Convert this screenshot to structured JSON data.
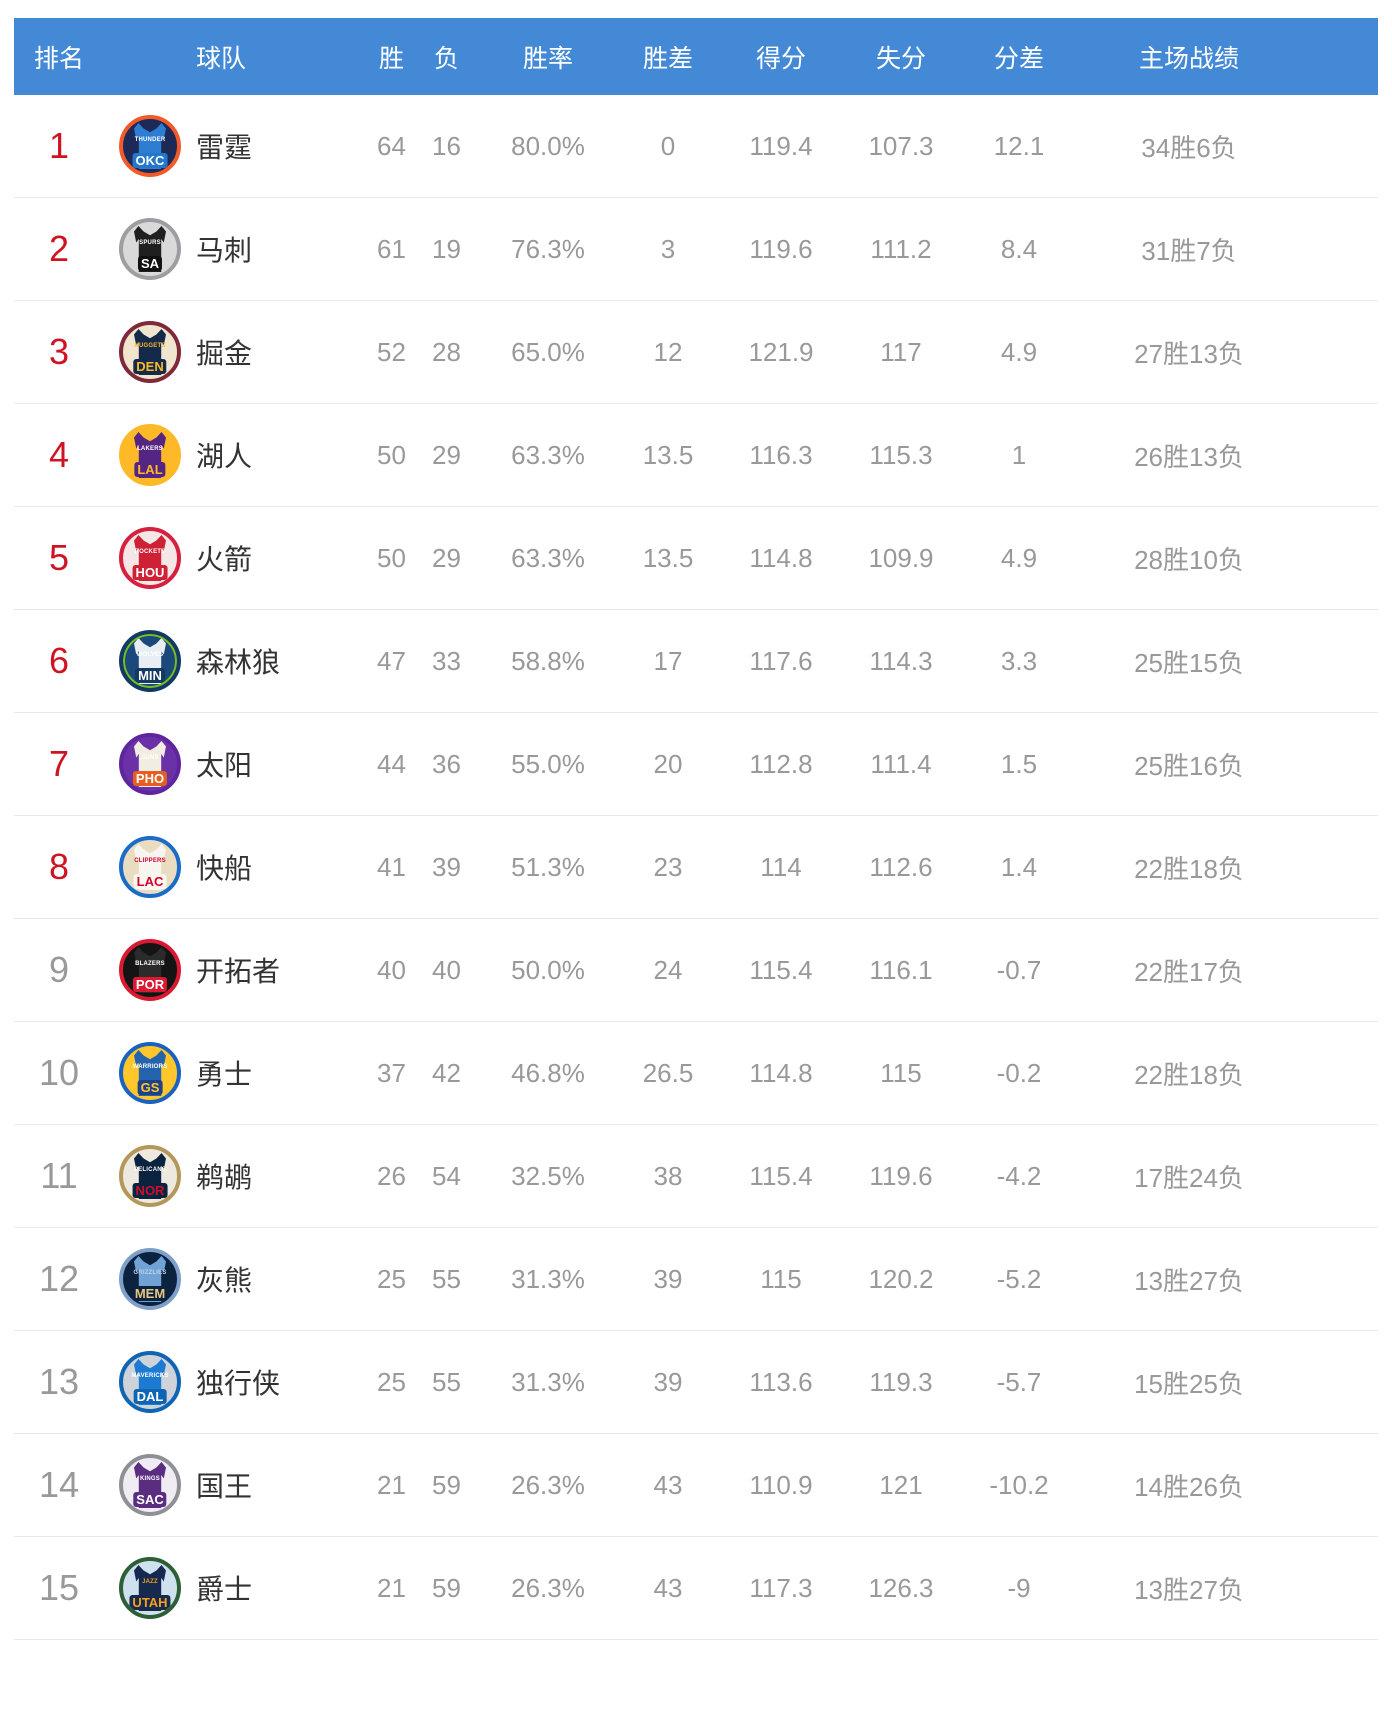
{
  "theme": {
    "header_bg": "#4489d6",
    "rank_top8_color": "#cf1322",
    "rank_normal_color": "#999999"
  },
  "table": {
    "columns": [
      "排名",
      "球队",
      "胜",
      "负",
      "胜率",
      "胜差",
      "得分",
      "失分",
      "分差",
      "主场战绩"
    ],
    "teams": [
      {
        "rank": "1",
        "rank_color": "#cf1322",
        "name": "雷霆",
        "wins": "64",
        "losses": "16",
        "win_rate": "80.0%",
        "games_behind": "0",
        "points_for": "119.4",
        "points_against": "107.3",
        "point_diff": "12.1",
        "home_record": "34胜6负",
        "logo": {
          "name": "THUNDER",
          "abbr": "OKC",
          "ring": "#f15a29",
          "bg": "#1d2a57",
          "jersey": "#2d7dd2",
          "name_color": "#ffffff",
          "abbr_color": "#ffffff",
          "abbr_bg": "#2478cc"
        }
      },
      {
        "rank": "2",
        "rank_color": "#cf1322",
        "name": "马刺",
        "wins": "61",
        "losses": "19",
        "win_rate": "76.3%",
        "games_behind": "3",
        "points_for": "119.6",
        "points_against": "111.2",
        "point_diff": "8.4",
        "home_record": "31胜7负",
        "logo": {
          "name": "SPURS",
          "abbr": "SA",
          "ring": "#9c9ea1",
          "bg": "#d9d9d9",
          "jersey": "#1f1f1f",
          "name_color": "#ffffff",
          "abbr_color": "#ffffff",
          "abbr_bg": "#111111"
        }
      },
      {
        "rank": "3",
        "rank_color": "#cf1322",
        "name": "掘金",
        "wins": "52",
        "losses": "28",
        "win_rate": "65.0%",
        "games_behind": "12",
        "points_for": "121.9",
        "points_against": "117",
        "point_diff": "4.9",
        "home_record": "27胜13负",
        "logo": {
          "name": "NUGGETS",
          "abbr": "DEN",
          "ring": "#7e2a3a",
          "bg": "#f0e6cf",
          "jersey": "#15294b",
          "name_color": "#fdb927",
          "abbr_color": "#fdb927",
          "abbr_bg": "#15294b"
        }
      },
      {
        "rank": "4",
        "rank_color": "#cf1322",
        "name": "湖人",
        "wins": "50",
        "losses": "29",
        "win_rate": "63.3%",
        "games_behind": "13.5",
        "points_for": "116.3",
        "points_against": "115.3",
        "point_diff": "1",
        "home_record": "26胜13负",
        "logo": {
          "name": "LAKERS",
          "abbr": "LAL",
          "ring": "#fdb927",
          "bg": "#fdb927",
          "jersey": "#552583",
          "name_color": "#ffffff",
          "abbr_color": "#fdb927",
          "abbr_bg": "#552583"
        }
      },
      {
        "rank": "5",
        "rank_color": "#cf1322",
        "name": "火箭",
        "wins": "50",
        "losses": "29",
        "win_rate": "63.3%",
        "games_behind": "13.5",
        "points_for": "114.8",
        "points_against": "109.9",
        "point_diff": "4.9",
        "home_record": "28胜10负",
        "logo": {
          "name": "ROCKETS",
          "abbr": "HOU",
          "ring": "#d6203f",
          "bg": "#f6e7e7",
          "jersey": "#ce2135",
          "name_color": "#ffffff",
          "abbr_color": "#ffffff",
          "abbr_bg": "#ce2135"
        }
      },
      {
        "rank": "6",
        "rank_color": "#cf1322",
        "name": "森林狼",
        "wins": "47",
        "losses": "33",
        "win_rate": "58.8%",
        "games_behind": "17",
        "points_for": "117.6",
        "points_against": "114.3",
        "point_diff": "3.3",
        "home_record": "25胜15负",
        "logo": {
          "name": "WOLVES",
          "abbr": "MIN",
          "ring": "#123a63",
          "ring2": "#78be20",
          "bg": "#1b4a7a",
          "jersey": "#e9eef5",
          "name_color": "#ffffff",
          "abbr_color": "#ffffff",
          "abbr_bg": "#123a63"
        }
      },
      {
        "rank": "7",
        "rank_color": "#cf1322",
        "name": "太阳",
        "wins": "44",
        "losses": "36",
        "win_rate": "55.0%",
        "games_behind": "20",
        "points_for": "112.8",
        "points_against": "111.4",
        "point_diff": "1.5",
        "home_record": "25胜16负",
        "logo": {
          "name": "SUNS",
          "abbr": "PHO",
          "ring": "#5f259f",
          "bg": "#6b32a8",
          "jersey": "#f2ede2",
          "name_color": "#ffffff",
          "abbr_color": "#ffffff",
          "abbr_bg": "#e56020"
        }
      },
      {
        "rank": "8",
        "rank_color": "#cf1322",
        "name": "快船",
        "wins": "41",
        "losses": "39",
        "win_rate": "51.3%",
        "games_behind": "23",
        "points_for": "114",
        "points_against": "112.6",
        "point_diff": "1.4",
        "home_record": "22胜18负",
        "logo": {
          "name": "CLIPPERS",
          "abbr": "LAC",
          "ring": "#1a6cc8",
          "bg": "#e9dcc0",
          "jersey": "#f7f5ef",
          "name_color": "#d50032",
          "abbr_color": "#d50032",
          "abbr_bg": "#faf7ee"
        }
      },
      {
        "rank": "9",
        "rank_color": "#999999",
        "name": "开拓者",
        "wins": "40",
        "losses": "40",
        "win_rate": "50.0%",
        "games_behind": "24",
        "points_for": "115.4",
        "points_against": "116.1",
        "point_diff": "-0.7",
        "home_record": "22胜17负",
        "logo": {
          "name": "BLAZERS",
          "abbr": "POR",
          "ring": "#d91a32",
          "bg": "#141414",
          "jersey": "#2b2b2b",
          "name_color": "#ffffff",
          "abbr_color": "#ffffff",
          "abbr_bg": "#d91a32"
        }
      },
      {
        "rank": "10",
        "rank_color": "#999999",
        "name": "勇士",
        "wins": "37",
        "losses": "42",
        "win_rate": "46.8%",
        "games_behind": "26.5",
        "points_for": "114.8",
        "points_against": "115",
        "point_diff": "-0.2",
        "home_record": "22胜18负",
        "logo": {
          "name": "WARRIORS",
          "abbr": "GS",
          "ring": "#1b62c0",
          "bg": "#ffc72c",
          "jersey": "#2563ad",
          "name_color": "#ffffff",
          "abbr_color": "#ffc72c",
          "abbr_bg": "#1d428a"
        }
      },
      {
        "rank": "11",
        "rank_color": "#999999",
        "name": "鹈鹕",
        "wins": "26",
        "losses": "54",
        "win_rate": "32.5%",
        "games_behind": "38",
        "points_for": "115.4",
        "points_against": "119.6",
        "point_diff": "-4.2",
        "home_record": "17胜24负",
        "logo": {
          "name": "PELICANS",
          "abbr": "NOR",
          "ring": "#b4975a",
          "bg": "#ede9df",
          "jersey": "#0c2340",
          "name_color": "#ffffff",
          "abbr_color": "#c8102e",
          "abbr_bg": "#0c2340"
        }
      },
      {
        "rank": "12",
        "rank_color": "#999999",
        "name": "灰熊",
        "wins": "25",
        "losses": "55",
        "win_rate": "31.3%",
        "games_behind": "39",
        "points_for": "115",
        "points_against": "120.2",
        "point_diff": "-5.2",
        "home_record": "13胜27负",
        "logo": {
          "name": "GRIZZLIES",
          "abbr": "MEM",
          "ring": "#7d9fc9",
          "bg": "#0c2340",
          "jersey": "#71a2d6",
          "name_color": "#bcd3ea",
          "abbr_color": "#e8c87e",
          "abbr_bg": "#0c2340"
        }
      },
      {
        "rank": "13",
        "rank_color": "#999999",
        "name": "独行侠",
        "wins": "25",
        "losses": "55",
        "win_rate": "31.3%",
        "games_behind": "39",
        "points_for": "113.6",
        "points_against": "119.3",
        "point_diff": "-5.7",
        "home_record": "15胜25负",
        "logo": {
          "name": "MAVERICKS",
          "abbr": "DAL",
          "ring": "#0f64b4",
          "bg": "#cdd3d8",
          "jersey": "#1d7ad2",
          "name_color": "#ffffff",
          "abbr_color": "#ffffff",
          "abbr_bg": "#0f64b4"
        }
      },
      {
        "rank": "14",
        "rank_color": "#999999",
        "name": "国王",
        "wins": "21",
        "losses": "59",
        "win_rate": "26.3%",
        "games_behind": "43",
        "points_for": "110.9",
        "points_against": "121",
        "point_diff": "-10.2",
        "home_record": "14胜26负",
        "logo": {
          "name": "KINGS",
          "abbr": "SAC",
          "ring": "#8e9095",
          "bg": "#efecf3",
          "jersey": "#5a2d81",
          "name_color": "#ffffff",
          "abbr_color": "#ffffff",
          "abbr_bg": "#5a2d81"
        }
      },
      {
        "rank": "15",
        "rank_color": "#999999",
        "name": "爵士",
        "wins": "21",
        "losses": "59",
        "win_rate": "26.3%",
        "games_behind": "43",
        "points_for": "117.3",
        "points_against": "126.3",
        "point_diff": "-9",
        "home_record": "13胜27负",
        "logo": {
          "name": "JAZZ",
          "abbr": "UTAH",
          "ring": "#2d5e35",
          "bg": "#cfe0ee",
          "jersey": "#152a4e",
          "name_color": "#f9a01b",
          "abbr_color": "#f9a01b",
          "abbr_bg": "#152a4e"
        }
      }
    ]
  }
}
